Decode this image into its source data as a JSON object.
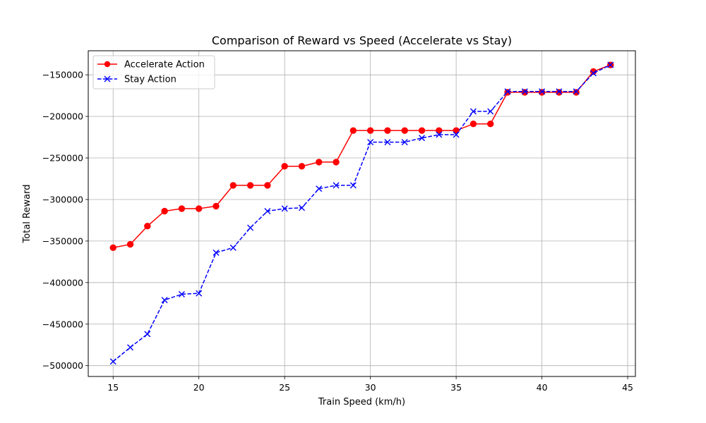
{
  "chart_data": {
    "type": "line",
    "title": "Comparison of Reward vs Speed (Accelerate vs Stay)",
    "xlabel": "Train Speed (km/h)",
    "ylabel": "Total Reward",
    "xlim": [
      13.55,
      45.45
    ],
    "ylim": [
      -513000,
      -121000
    ],
    "x_ticks": [
      15,
      20,
      25,
      30,
      35,
      40,
      45
    ],
    "y_ticks": [
      -500000,
      -450000,
      -400000,
      -350000,
      -300000,
      -250000,
      -200000,
      -150000
    ],
    "grid": true,
    "legend_position": "top-left",
    "x": [
      15,
      16,
      17,
      18,
      19,
      20,
      21,
      22,
      23,
      24,
      25,
      26,
      27,
      28,
      29,
      30,
      31,
      32,
      33,
      34,
      35,
      36,
      37,
      38,
      39,
      40,
      41,
      42,
      43,
      44
    ],
    "series": [
      {
        "name": "Accelerate Action",
        "color": "#ff0000",
        "line_style": "solid",
        "marker": "circle",
        "values": [
          -358000,
          -354000,
          -332000,
          -314000,
          -311000,
          -311000,
          -308000,
          -283000,
          -283000,
          -283000,
          -260000,
          -260000,
          -255000,
          -255000,
          -217000,
          -217000,
          -217000,
          -217000,
          -217000,
          -217000,
          -217000,
          -209000,
          -209000,
          -171000,
          -171000,
          -171000,
          -171000,
          -171000,
          -146000,
          -138000
        ]
      },
      {
        "name": "Stay Action",
        "color": "#0000ff",
        "line_style": "dashed",
        "marker": "x",
        "values": [
          -495000,
          -478000,
          -462000,
          -421000,
          -414000,
          -413000,
          -364000,
          -358000,
          -334000,
          -314000,
          -311000,
          -310000,
          -287000,
          -283000,
          -283000,
          -231000,
          -231000,
          -231000,
          -226000,
          -222000,
          -222000,
          -194000,
          -194000,
          -170000,
          -170000,
          -170000,
          -170000,
          -170000,
          -148000,
          -138000
        ]
      }
    ]
  }
}
